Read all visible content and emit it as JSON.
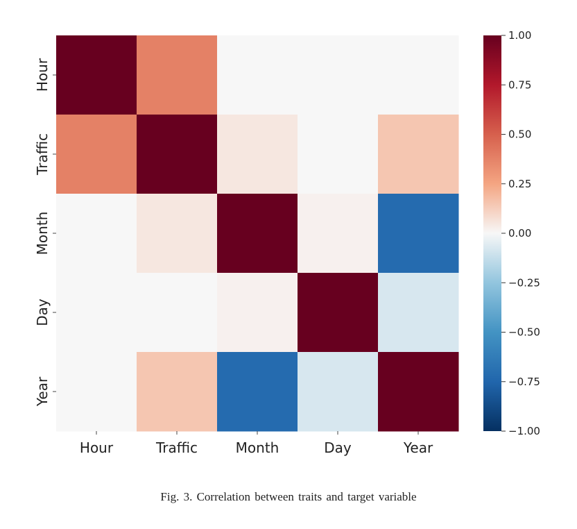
{
  "caption": "Fig. 3.  Correlation between traits and target variable",
  "colorbar_labels": [
    "1.00",
    "0.75",
    "0.50",
    "0.25",
    "0.00",
    "−0.25",
    "−0.50",
    "−0.75",
    "−1.00"
  ],
  "chart_data": {
    "type": "heatmap",
    "title": "",
    "x_categories": [
      "Hour",
      "Traffic",
      "Month",
      "Day",
      "Year"
    ],
    "y_categories": [
      "Hour",
      "Traffic",
      "Month",
      "Day",
      "Year"
    ],
    "values": [
      [
        1.0,
        0.38,
        0.0,
        0.0,
        0.0
      ],
      [
        0.38,
        1.0,
        0.05,
        0.0,
        0.15
      ],
      [
        0.0,
        0.05,
        1.0,
        0.02,
        -0.72
      ],
      [
        0.0,
        0.0,
        0.02,
        1.0,
        -0.08
      ],
      [
        0.0,
        0.15,
        -0.72,
        -0.08,
        1.0
      ]
    ],
    "vmin": -1.0,
    "vmax": 1.0,
    "colormap": "RdBu_r",
    "colorbar_ticks": [
      1.0,
      0.75,
      0.5,
      0.25,
      0.0,
      -0.25,
      -0.5,
      -0.75,
      -1.0
    ],
    "colors": {
      "max": "#67001f",
      "mid": "#f7f7f7",
      "min": "#053061"
    }
  }
}
